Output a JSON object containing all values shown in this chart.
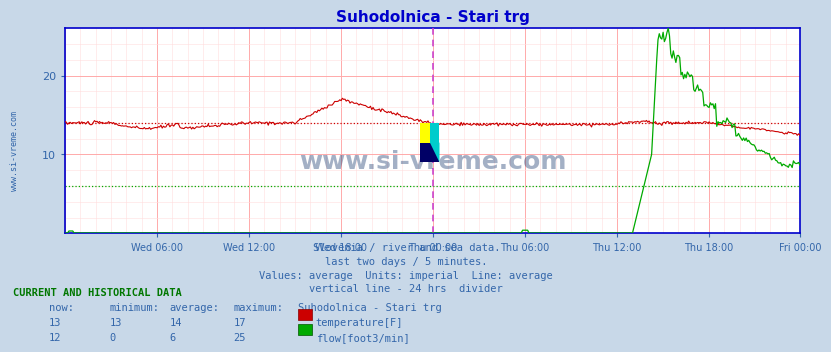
{
  "title": "Suhodolnica - Stari trg",
  "fig_bg_color": "#c8d8e8",
  "plot_bg_color": "#ffffff",
  "grid_major_color": "#ffaaaa",
  "grid_minor_color": "#ffdddd",
  "temp_color": "#cc0000",
  "flow_color": "#00aa00",
  "temp_avg_color": "#cc0000",
  "flow_avg_color": "#00aa00",
  "divider_color": "#cc44cc",
  "axis_color": "#0000cc",
  "spine_color": "#0000cc",
  "text_color": "#3366aa",
  "tick_color": "#3366aa",
  "watermark_text": "www.si-vreme.com",
  "watermark_color": "#1a3a6e",
  "watermark_alpha": 0.4,
  "sidebar_text": "www.si-vreme.com",
  "sidebar_color": "#3366aa",
  "subtitle_lines": [
    "Slovenia / river and sea data.",
    "last two days / 5 minutes.",
    "Values: average  Units: imperial  Line: average",
    "vertical line - 24 hrs  divider"
  ],
  "bottom_header": "CURRENT AND HISTORICAL DATA",
  "bottom_cols": [
    "now:",
    "minimum:",
    "average:",
    "maximum:",
    "Suhodolnica - Stari trg"
  ],
  "temp_row": [
    "13",
    "13",
    "14",
    "17",
    "temperature[F]"
  ],
  "flow_row": [
    "12",
    "0",
    "6",
    "25",
    "flow[foot3/min]"
  ],
  "temp_color_swatch": "#cc0000",
  "flow_color_swatch": "#00aa00",
  "ylim": [
    0,
    26
  ],
  "yticks": [
    10,
    20
  ],
  "n_points": 576,
  "temp_avg": 14.0,
  "flow_avg": 6.0,
  "divider_x": 288,
  "x_tick_labels": [
    "Wed 06:00",
    "Wed 12:00",
    "Wed 18:00",
    "Thu 00:00",
    "Thu 06:00",
    "Thu 12:00",
    "Thu 18:00",
    "Fri 00:00"
  ],
  "x_tick_positions": [
    72,
    144,
    216,
    288,
    360,
    432,
    504,
    575
  ]
}
